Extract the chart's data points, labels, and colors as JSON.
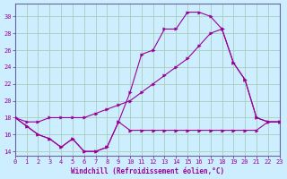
{
  "bg_color": "#cceeff",
  "grid_color": "#aaccbb",
  "line_color": "#990099",
  "xlabel": "Windchill (Refroidissement éolien,°C)",
  "ylim": [
    13.5,
    31.5
  ],
  "xlim": [
    0,
    23
  ],
  "yticks": [
    14,
    16,
    18,
    20,
    22,
    24,
    26,
    28,
    30
  ],
  "xticks": [
    0,
    1,
    2,
    3,
    4,
    5,
    6,
    7,
    8,
    9,
    10,
    11,
    12,
    13,
    14,
    15,
    16,
    17,
    18,
    19,
    20,
    21,
    22,
    23
  ],
  "curve1_x": [
    0,
    1,
    2,
    3,
    4,
    5,
    6,
    7,
    8,
    9,
    10,
    11,
    12,
    13,
    14,
    15,
    16,
    17,
    18,
    19,
    20,
    21,
    22,
    23
  ],
  "curve1_y": [
    18,
    17,
    16,
    15.5,
    14.5,
    15.5,
    14,
    14,
    14.5,
    17.5,
    21.0,
    25.5,
    26.0,
    28.5,
    28.5,
    30.5,
    30.5,
    30.0,
    28.5,
    24.5,
    22.5,
    18.0,
    17.5,
    17.5
  ],
  "curve2_x": [
    0,
    1,
    2,
    3,
    4,
    5,
    6,
    7,
    8,
    9,
    10,
    11,
    12,
    13,
    14,
    15,
    16,
    17,
    18,
    19,
    20,
    21,
    22,
    23
  ],
  "curve2_y": [
    18,
    17.5,
    17.5,
    18.0,
    18.0,
    18.0,
    18.0,
    18.5,
    19.0,
    19.5,
    20.0,
    21.0,
    22.0,
    23.0,
    24.0,
    25.0,
    26.5,
    28.0,
    28.5,
    24.5,
    22.5,
    18.0,
    17.5,
    17.5
  ],
  "curve3_x": [
    0,
    1,
    2,
    3,
    4,
    5,
    6,
    7,
    8,
    9,
    10,
    11,
    12,
    13,
    14,
    15,
    16,
    17,
    18,
    19,
    20,
    21,
    22,
    23
  ],
  "curve3_y": [
    18,
    17,
    16,
    15.5,
    14.5,
    15.5,
    14.0,
    14.0,
    14.5,
    17.5,
    16.5,
    16.5,
    16.5,
    16.5,
    16.5,
    16.5,
    16.5,
    16.5,
    16.5,
    16.5,
    16.5,
    16.5,
    17.5,
    17.5
  ]
}
